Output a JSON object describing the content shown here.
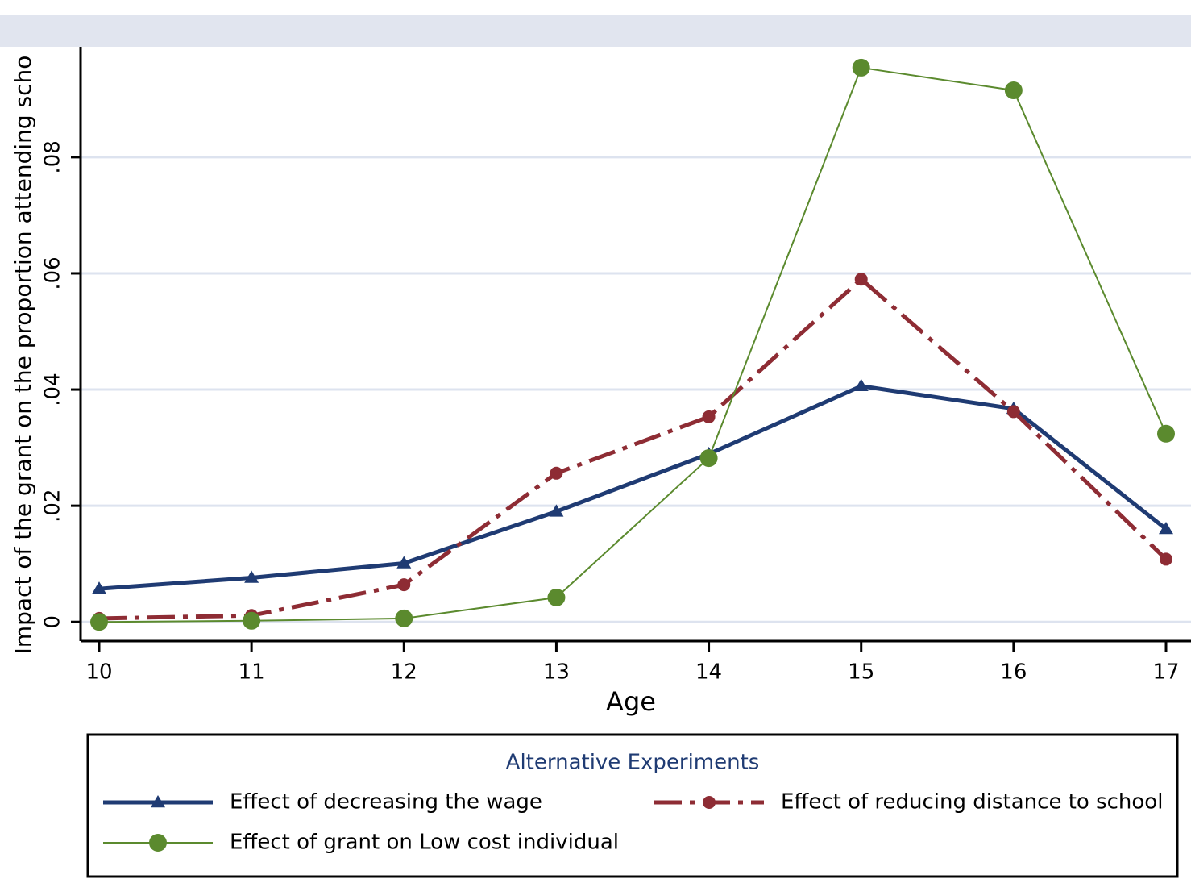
{
  "chart_data": {
    "type": "line",
    "y_label": "Impact of the grant on the proportion attending scho",
    "x_label": "Age",
    "legend_title": "Alternative Experiments",
    "x": [
      10,
      11,
      12,
      13,
      14,
      15,
      16,
      17
    ],
    "xlim": [
      10,
      17
    ],
    "xticks": [
      10,
      11,
      12,
      13,
      14,
      15,
      16,
      17
    ],
    "ylim": [
      -0.0033,
      0.099
    ],
    "yticks": [
      {
        "value": 0,
        "label": "0"
      },
      {
        "value": 0.02,
        "label": ".02"
      },
      {
        "value": 0.04,
        "label": ".04"
      },
      {
        "value": 0.06,
        "label": ".06"
      },
      {
        "value": 0.08,
        "label": ".08"
      }
    ],
    "grid": true,
    "series": [
      {
        "name": "Effect of decreasing the wage",
        "color": "#1f3b73",
        "marker": "triangle",
        "dash": "solid",
        "values": [
          0.0057,
          0.0076,
          0.0101,
          0.019,
          0.0289,
          0.0406,
          0.0367,
          0.016
        ]
      },
      {
        "name": "Effect of reducing distance to school",
        "color": "#8e2c34",
        "marker": "circle",
        "dash": "dashdot",
        "values": [
          0.0006,
          0.0011,
          0.0064,
          0.0256,
          0.0353,
          0.059,
          0.0362,
          0.0108
        ]
      },
      {
        "name": "Effect of grant on Low cost individual",
        "color": "#5b8a2e",
        "marker": "circle",
        "dash": "thin",
        "values": [
          0,
          0.0002,
          0.0006,
          0.0042,
          0.0282,
          0.0954,
          0.0915,
          0.0324
        ]
      }
    ]
  }
}
